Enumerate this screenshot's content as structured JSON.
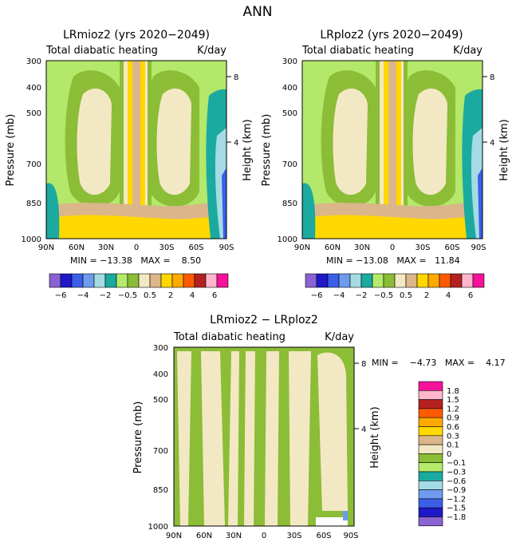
{
  "figure_title": "ANN",
  "chart_data": [
    {
      "type": "heatmap",
      "title": "LRmioz2 (yrs 2020−2049)",
      "subtitle_left": "Total diabatic heating",
      "subtitle_right": "K/day",
      "xlabel": "",
      "ylabel": "Pressure (mb)",
      "y2label": "Height (km)",
      "x_ticklabels": [
        "90N",
        "60N",
        "30N",
        "0",
        "30S",
        "60S",
        "90S"
      ],
      "y_ticklabels": [
        "300",
        "400",
        "500",
        "700",
        "850",
        "1000"
      ],
      "y2_ticklabels": [
        "8",
        "4"
      ],
      "stats": "MIN = −13.38   MAX =    8.50",
      "colorbar_labels": [
        "−6",
        "−4",
        "−2",
        "−0.5",
        "0.5",
        "2",
        "4",
        "6"
      ]
    },
    {
      "type": "heatmap",
      "title": "LRploz2 (yrs 2020−2049)",
      "subtitle_left": "Total diabatic heating",
      "subtitle_right": "K/day",
      "xlabel": "",
      "ylabel": "Pressure (mb)",
      "y2label": "Height (km)",
      "x_ticklabels": [
        "90N",
        "60N",
        "30N",
        "0",
        "30S",
        "60S",
        "90S"
      ],
      "y_ticklabels": [
        "300",
        "400",
        "500",
        "700",
        "850",
        "1000"
      ],
      "y2_ticklabels": [
        "8",
        "4"
      ],
      "stats": "MIN = −13.08   MAX =   11.84",
      "colorbar_labels": [
        "−6",
        "−4",
        "−2",
        "−0.5",
        "0.5",
        "2",
        "4",
        "6"
      ]
    },
    {
      "type": "heatmap",
      "title": "LRmioz2 − LRploz2",
      "subtitle_left": "Total diabatic heating",
      "subtitle_right": "K/day",
      "xlabel": "",
      "ylabel": "Pressure (mb)",
      "y2label": "Height (km)",
      "x_ticklabels": [
        "90N",
        "60N",
        "30N",
        "0",
        "30S",
        "60S",
        "90S"
      ],
      "y_ticklabels": [
        "300",
        "400",
        "500",
        "700",
        "850",
        "1000"
      ],
      "y2_ticklabels": [
        "8",
        "4"
      ],
      "stats": "MIN =    −4.73   MAX =    4.17",
      "colorbar_labels": [
        "1.8",
        "1.5",
        "1.2",
        "0.9",
        "0.6",
        "0.3",
        "0.1",
        "0",
        "−0.1",
        "−0.3",
        "−0.6",
        "−0.9",
        "−1.2",
        "−1.5",
        "−1.8"
      ]
    }
  ],
  "colors": {
    "palette": [
      "#8a63d2",
      "#1e18c8",
      "#3b5fe6",
      "#6e9bef",
      "#a5dbe4",
      "#1aaaa0",
      "#b5eb6a",
      "#8cbd36",
      "#f3e8c4",
      "#dbb68a",
      "#ffd800",
      "#ffa800",
      "#ff5a00",
      "#b42020",
      "#ffb6cc",
      "#f6129a"
    ],
    "field_bg": "#b4e86a",
    "field_mid": "#f3e8c4",
    "field_olive": "#8cbd36"
  }
}
